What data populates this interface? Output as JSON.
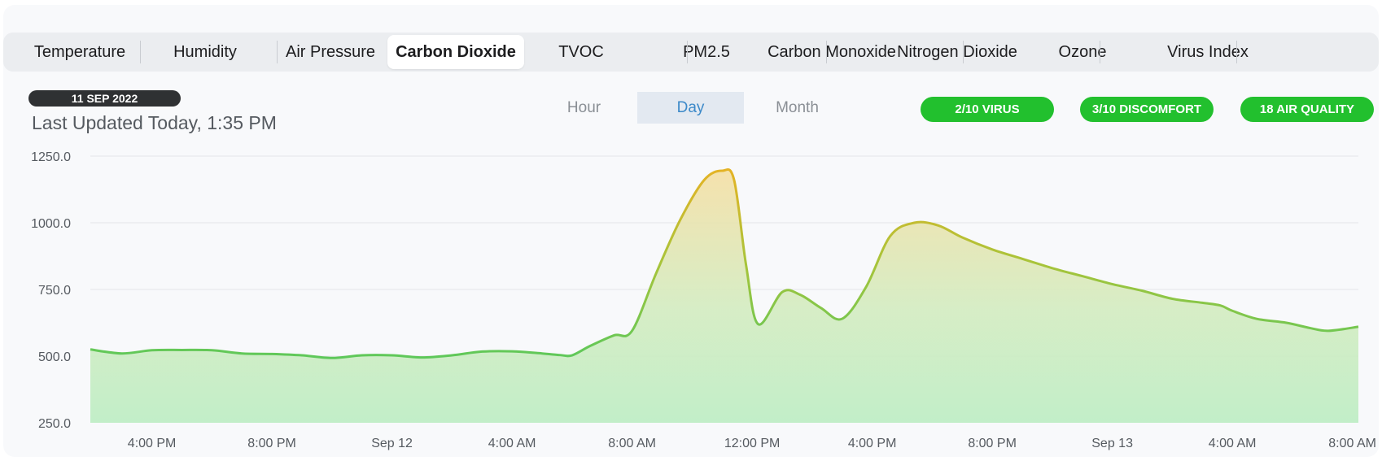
{
  "tabs": [
    {
      "label": "Temperature",
      "active": false
    },
    {
      "label": "Humidity",
      "active": false
    },
    {
      "label": "Air Pressure",
      "active": false
    },
    {
      "label": "Carbon Dioxide",
      "active": true
    },
    {
      "label": "TVOC",
      "active": false
    },
    {
      "label": "PM2.5",
      "active": false
    },
    {
      "label": "Carbon Monoxide",
      "active": false
    },
    {
      "label": "Nitrogen Dioxide",
      "active": false
    },
    {
      "label": "Ozone",
      "active": false
    },
    {
      "label": "Virus Index",
      "active": false
    }
  ],
  "header": {
    "date_badge": "11 SEP 2022",
    "last_updated": "Last Updated Today, 1:35 PM"
  },
  "range": {
    "options": [
      "Hour",
      "Day",
      "Month"
    ],
    "selected": "Day"
  },
  "badges": [
    {
      "text": "2/10  VIRUS"
    },
    {
      "text": "3/10  DISCOMFORT"
    },
    {
      "text": "18  AIR QUALITY"
    }
  ],
  "colors": {
    "accent": "#3c89c9",
    "good": "#22c02e",
    "line_low": "#5ec85a",
    "line_high": "#e4b325"
  },
  "chart_data": {
    "type": "area",
    "title": "",
    "xlabel": "",
    "ylabel": "",
    "x_unit": "hours since Sep 11 12:00 PM",
    "xlim": [
      1.95,
      44.2
    ],
    "ylim": [
      250,
      1250
    ],
    "yticks": [
      250,
      500,
      750,
      1000,
      1250
    ],
    "ytick_labels": [
      "250.0",
      "500.0",
      "750.0",
      "1000.0",
      "1250.0"
    ],
    "xticks": [
      {
        "x": 4,
        "label": "4:00 PM"
      },
      {
        "x": 8,
        "label": "8:00 PM"
      },
      {
        "x": 12,
        "label": "Sep 12"
      },
      {
        "x": 16,
        "label": "4:00 AM"
      },
      {
        "x": 20,
        "label": "8:00 AM"
      },
      {
        "x": 24,
        "label": "12:00 PM"
      },
      {
        "x": 28,
        "label": "4:00 PM"
      },
      {
        "x": 32,
        "label": "8:00 PM"
      },
      {
        "x": 36,
        "label": "Sep 13"
      },
      {
        "x": 40,
        "label": "4:00 AM"
      },
      {
        "x": 44,
        "label": "8:00 AM"
      }
    ],
    "grid": true,
    "series": [
      {
        "name": "Carbon Dioxide",
        "x": [
          1.95,
          3.0,
          4.0,
          5.0,
          6.0,
          7.0,
          8.0,
          9.0,
          10.0,
          11.0,
          12.0,
          13.0,
          14.0,
          15.0,
          16.0,
          17.0,
          17.6,
          18.0,
          18.6,
          19.4,
          20.0,
          20.8,
          21.6,
          22.4,
          23.0,
          23.4,
          23.8,
          24.2,
          25.0,
          25.6,
          26.3,
          27.0,
          27.8,
          28.6,
          29.4,
          30.2,
          31.0,
          32.0,
          33.0,
          34.0,
          35.0,
          36.0,
          37.0,
          38.0,
          39.0,
          39.6,
          40.0,
          40.8,
          41.8,
          42.6,
          43.2,
          44.2
        ],
        "values": [
          525,
          510,
          522,
          523,
          522,
          510,
          508,
          503,
          493,
          503,
          503,
          495,
          503,
          517,
          518,
          510,
          504,
          503,
          538,
          578,
          595,
          810,
          1010,
          1160,
          1195,
          1160,
          840,
          620,
          740,
          730,
          680,
          640,
          760,
          950,
          1000,
          990,
          945,
          900,
          865,
          830,
          800,
          770,
          745,
          715,
          700,
          690,
          670,
          640,
          625,
          605,
          595,
          610
        ]
      }
    ]
  }
}
